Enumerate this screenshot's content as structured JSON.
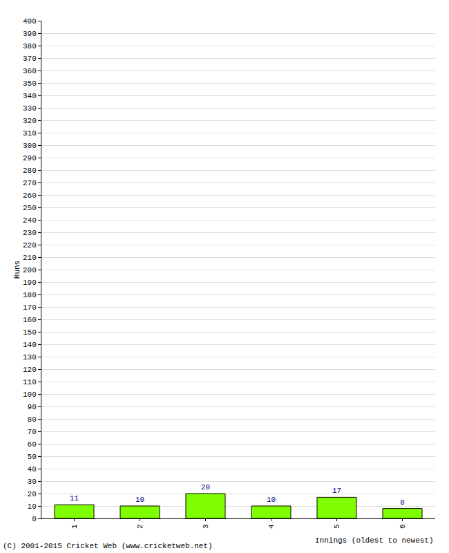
{
  "chart_data": {
    "type": "bar",
    "categories": [
      "1",
      "2",
      "3",
      "4",
      "5",
      "6"
    ],
    "values": [
      11,
      10,
      20,
      10,
      17,
      8
    ],
    "color": "#80ff00",
    "x_label": "Innings (oldest to newest)",
    "y_label": "Runs",
    "ylim": [
      0,
      400
    ],
    "yticks": [
      0,
      10,
      20,
      30,
      40,
      50,
      60,
      70,
      80,
      90,
      100,
      110,
      120,
      130,
      140,
      150,
      160,
      170,
      180,
      190,
      200,
      210,
      220,
      230,
      240,
      250,
      260,
      270,
      280,
      290,
      300,
      310,
      320,
      330,
      340,
      350,
      360,
      370,
      380,
      390,
      400
    ],
    "grid": true,
    "data_labels": true,
    "annotations": [
      "(C) 2001-2015 Cricket Web (www.cricketweb.net)"
    ]
  }
}
